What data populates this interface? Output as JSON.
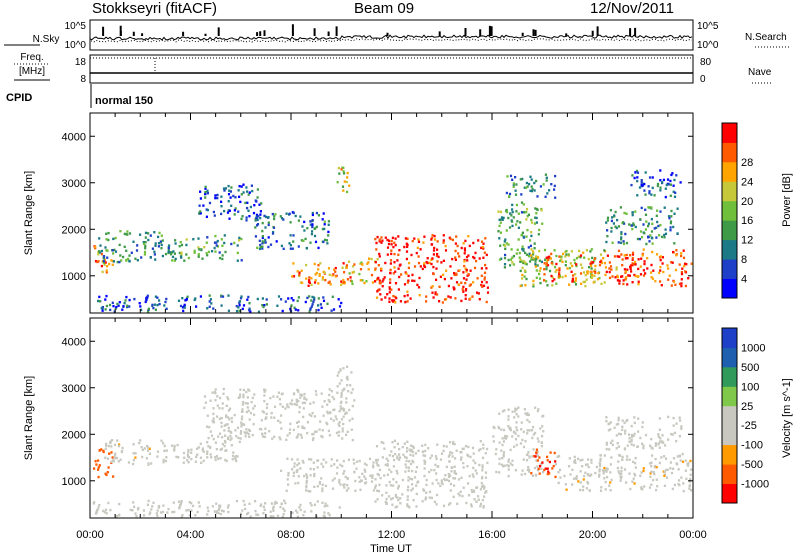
{
  "header": {
    "station": "Stokkseyri (fitACF)",
    "beam": "Beam 09",
    "date": "12/Nov/2011"
  },
  "top_panel": {
    "nsky_label": "N.Sky",
    "nsearch_label": "N.Search",
    "nsky_ticks": [
      "10^5",
      "10^0"
    ],
    "nsearch_ticks": [
      "10^5",
      "10^0"
    ],
    "freq_label": "Freq.",
    "freq_unit": "[MHz]",
    "freq_ticks": [
      "18",
      "8"
    ],
    "nave_label": "Nave",
    "nave_ticks": [
      "80",
      "0"
    ],
    "cpid_label": "CPID",
    "cpid_value": "normal 150"
  },
  "chart_data": [
    {
      "type": "heatmap",
      "title": "",
      "ylabel": "Slant Range [km]",
      "xlabel": "",
      "xlim": [
        "00:00",
        "24:00"
      ],
      "ylim": [
        200,
        4500
      ],
      "yticks": [
        1000,
        2000,
        3000,
        4000
      ],
      "colorbar": {
        "label": "Power [dB]",
        "ticks": [
          "4",
          "8",
          "12",
          "16",
          "20",
          "24",
          "28"
        ],
        "range": [
          0,
          30
        ],
        "colors": [
          "#0000ff",
          "#1e3fc8",
          "#1b7a86",
          "#3f9a48",
          "#6fbf3a",
          "#c7c73a",
          "#ffa400",
          "#ff5a00",
          "#ff0000"
        ]
      },
      "regions": [
        {
          "t0": 0.1,
          "t1": 0.9,
          "r0": 1050,
          "r1": 1700,
          "level": 24
        },
        {
          "t0": 0.3,
          "t1": 2.8,
          "r0": 1300,
          "r1": 2000,
          "level": 10
        },
        {
          "t0": 2.8,
          "t1": 6.0,
          "r0": 1350,
          "r1": 1900,
          "level": 12
        },
        {
          "t0": 4.3,
          "t1": 6.8,
          "r0": 2200,
          "r1": 3000,
          "level": 6
        },
        {
          "t0": 6.5,
          "t1": 9.5,
          "r0": 1600,
          "r1": 2400,
          "level": 8
        },
        {
          "t0": 8.0,
          "t1": 10.5,
          "r0": 800,
          "r1": 1300,
          "level": 24
        },
        {
          "t0": 10.0,
          "t1": 11.5,
          "r0": 850,
          "r1": 1400,
          "level": 20
        },
        {
          "t0": 9.8,
          "t1": 10.3,
          "r0": 2800,
          "r1": 3500,
          "level": 18
        },
        {
          "t0": 11.3,
          "t1": 15.8,
          "r0": 450,
          "r1": 1900,
          "level": 28
        },
        {
          "t0": 16.2,
          "t1": 18.0,
          "r0": 1200,
          "r1": 2600,
          "level": 12
        },
        {
          "t0": 16.5,
          "t1": 18.5,
          "r0": 2700,
          "r1": 3200,
          "level": 10
        },
        {
          "t0": 17.0,
          "t1": 20.5,
          "r0": 800,
          "r1": 1600,
          "level": 16
        },
        {
          "t0": 18.0,
          "t1": 21.5,
          "r0": 900,
          "r1": 1500,
          "level": 24
        },
        {
          "t0": 21.0,
          "t1": 23.95,
          "r0": 800,
          "r1": 1600,
          "level": 26
        },
        {
          "t0": 20.5,
          "t1": 23.5,
          "r0": 1700,
          "r1": 2500,
          "level": 10
        },
        {
          "t0": 21.5,
          "t1": 23.5,
          "r0": 2700,
          "r1": 3300,
          "level": 6
        },
        {
          "t0": 0.1,
          "t1": 10.0,
          "r0": 250,
          "r1": 600,
          "level": 6
        }
      ]
    },
    {
      "type": "heatmap",
      "title": "",
      "ylabel": "Slant Range [km]",
      "xlabel": "Time UT",
      "xlim": [
        "00:00",
        "24:00"
      ],
      "ylim": [
        200,
        4500
      ],
      "yticks": [
        1000,
        2000,
        3000,
        4000
      ],
      "xticks": [
        "00:00",
        "04:00",
        "08:00",
        "12:00",
        "16:00",
        "20:00",
        "00:00"
      ],
      "colorbar": {
        "label": "Velocity [m s^-1]",
        "ticks": [
          "1000",
          "500",
          "100",
          "25",
          "-25",
          "-100",
          "-500",
          "-1000"
        ],
        "range": [
          -1200,
          1200
        ],
        "colors": [
          "#ff0000",
          "#ff5a00",
          "#ff9a00",
          "#c8c8c0",
          "#c8c8c0",
          "#7fc84a",
          "#2f9a5a",
          "#1e5fb0",
          "#1e3fc8"
        ]
      },
      "regions": [
        {
          "t0": 0.1,
          "t1": 0.9,
          "r0": 1100,
          "r1": 1700,
          "level": -800
        },
        {
          "t0": 0.5,
          "t1": 2.5,
          "r0": 1350,
          "r1": 1900,
          "level": -300
        },
        {
          "t0": 2.5,
          "t1": 6.0,
          "r0": 1400,
          "r1": 1900,
          "level": -200
        },
        {
          "t0": 4.5,
          "t1": 10.5,
          "r0": 1900,
          "r1": 3000,
          "level": 0
        },
        {
          "t0": 7.5,
          "t1": 11.5,
          "r0": 800,
          "r1": 1500,
          "level": 0
        },
        {
          "t0": 9.8,
          "t1": 10.4,
          "r0": 2800,
          "r1": 3500,
          "level": -150
        },
        {
          "t0": 11.3,
          "t1": 15.8,
          "r0": 450,
          "r1": 1900,
          "level": 0
        },
        {
          "t0": 16.0,
          "t1": 18.0,
          "r0": 1100,
          "r1": 2600,
          "level": 0
        },
        {
          "t0": 17.5,
          "t1": 18.5,
          "r0": 1100,
          "r1": 1700,
          "level": -900
        },
        {
          "t0": 18.5,
          "t1": 23.9,
          "r0": 800,
          "r1": 1600,
          "level": -300
        },
        {
          "t0": 20.5,
          "t1": 23.5,
          "r0": 1700,
          "r1": 2400,
          "level": 0
        },
        {
          "t0": 0.1,
          "t1": 10.0,
          "r0": 250,
          "r1": 600,
          "level": 0
        }
      ]
    }
  ]
}
